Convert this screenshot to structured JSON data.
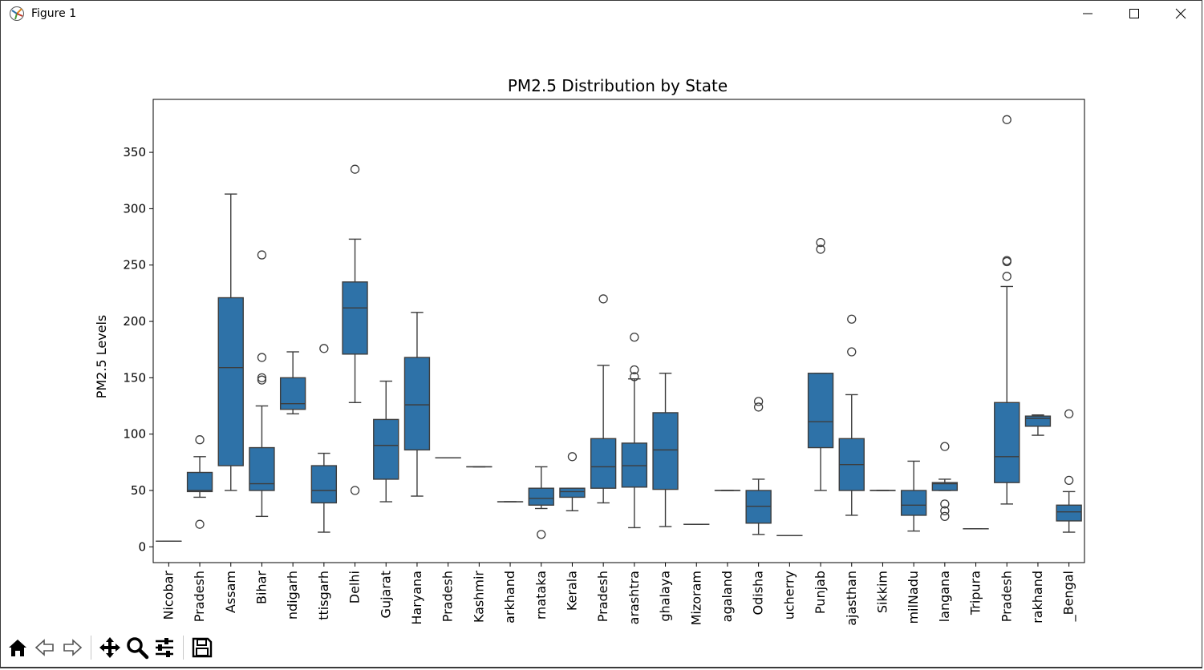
{
  "window": {
    "title": "Figure 1"
  },
  "toolbar": {
    "buttons": [
      {
        "name": "home-icon"
      },
      {
        "name": "back-icon"
      },
      {
        "name": "forward-icon"
      },
      {
        "name": "pan-icon"
      },
      {
        "name": "zoom-icon"
      },
      {
        "name": "configure-subplots-icon"
      },
      {
        "name": "save-icon"
      }
    ]
  },
  "chart_data": {
    "type": "box",
    "title": "PM2.5 Distribution by State",
    "xlabel": "",
    "ylabel": "PM2.5 Levels",
    "ylim": [
      -14,
      397
    ],
    "yticks": [
      0,
      50,
      100,
      150,
      200,
      250,
      300,
      350
    ],
    "color": "#2e72a8",
    "categories": [
      "Nicobar",
      "Pradesh",
      "Assam",
      "Bihar",
      "ndigarh",
      "ttisgarh",
      "Delhi",
      "Gujarat",
      "Haryana",
      "Pradesh",
      "Kashmir",
      "arkhand",
      "rnataka",
      "Kerala",
      "Pradesh",
      "arashtra",
      "ghalaya",
      "Mizoram",
      "agaland",
      "Odisha",
      "ucherry",
      "Punjab",
      "ajasthan",
      "Sikkim",
      "milNadu",
      "langana",
      "Tripura",
      "Pradesh",
      "rakhand",
      "_Bengal"
    ],
    "boxes": [
      {
        "min": 5,
        "q1": 5,
        "median": 5,
        "q3": 5,
        "max": 5,
        "outliers": []
      },
      {
        "min": 44,
        "q1": 49,
        "median": 50,
        "q3": 66,
        "max": 80,
        "outliers": [
          95,
          20
        ]
      },
      {
        "min": 50,
        "q1": 72,
        "median": 159,
        "q3": 221,
        "max": 313,
        "outliers": []
      },
      {
        "min": 27,
        "q1": 50,
        "median": 56,
        "q3": 88,
        "max": 125,
        "outliers": [
          259,
          168,
          150,
          148
        ]
      },
      {
        "min": 118,
        "q1": 122,
        "median": 127,
        "q3": 150,
        "max": 173,
        "outliers": []
      },
      {
        "min": 13,
        "q1": 39,
        "median": 50,
        "q3": 72,
        "max": 83,
        "outliers": [
          176
        ]
      },
      {
        "min": 128,
        "q1": 171,
        "median": 212,
        "q3": 235,
        "max": 273,
        "outliers": [
          335,
          50
        ]
      },
      {
        "min": 40,
        "q1": 60,
        "median": 90,
        "q3": 113,
        "max": 147,
        "outliers": []
      },
      {
        "min": 45,
        "q1": 86,
        "median": 126,
        "q3": 168,
        "max": 208,
        "outliers": []
      },
      {
        "min": 79,
        "q1": 79,
        "median": 79,
        "q3": 79,
        "max": 79,
        "outliers": []
      },
      {
        "min": 71,
        "q1": 71,
        "median": 71,
        "q3": 71,
        "max": 71,
        "outliers": []
      },
      {
        "min": 40,
        "q1": 40,
        "median": 40,
        "q3": 40,
        "max": 40,
        "outliers": []
      },
      {
        "min": 34,
        "q1": 37,
        "median": 43,
        "q3": 52,
        "max": 71,
        "outliers": [
          11
        ]
      },
      {
        "min": 32,
        "q1": 44,
        "median": 49,
        "q3": 52,
        "max": 52,
        "outliers": [
          80
        ]
      },
      {
        "min": 39,
        "q1": 52,
        "median": 71,
        "q3": 96,
        "max": 161,
        "outliers": [
          220
        ]
      },
      {
        "min": 17,
        "q1": 53,
        "median": 72,
        "q3": 92,
        "max": 149,
        "outliers": [
          186,
          157,
          151
        ]
      },
      {
        "min": 18,
        "q1": 51,
        "median": 86,
        "q3": 119,
        "max": 154,
        "outliers": []
      },
      {
        "min": 20,
        "q1": 20,
        "median": 20,
        "q3": 20,
        "max": 20,
        "outliers": []
      },
      {
        "min": 50,
        "q1": 50,
        "median": 50,
        "q3": 50,
        "max": 50,
        "outliers": []
      },
      {
        "min": 11,
        "q1": 21,
        "median": 36,
        "q3": 50,
        "max": 60,
        "outliers": [
          129,
          124
        ]
      },
      {
        "min": 10,
        "q1": 10,
        "median": 10,
        "q3": 10,
        "max": 10,
        "outliers": []
      },
      {
        "min": 50,
        "q1": 88,
        "median": 111,
        "q3": 154,
        "max": 154,
        "outliers": [
          270,
          264
        ]
      },
      {
        "min": 28,
        "q1": 50,
        "median": 73,
        "q3": 96,
        "max": 135,
        "outliers": [
          202,
          173
        ]
      },
      {
        "min": 50,
        "q1": 50,
        "median": 50,
        "q3": 50,
        "max": 50,
        "outliers": []
      },
      {
        "min": 14,
        "q1": 28,
        "median": 37,
        "q3": 50,
        "max": 76,
        "outliers": []
      },
      {
        "min": 50,
        "q1": 50,
        "median": 56,
        "q3": 57,
        "max": 60,
        "outliers": [
          89,
          38,
          32,
          27
        ]
      },
      {
        "min": 16,
        "q1": 16,
        "median": 16,
        "q3": 16,
        "max": 16,
        "outliers": []
      },
      {
        "min": 38,
        "q1": 57,
        "median": 80,
        "q3": 128,
        "max": 231,
        "outliers": [
          379,
          254,
          253,
          240
        ]
      },
      {
        "min": 99,
        "q1": 107,
        "median": 114,
        "q3": 116,
        "max": 117,
        "outliers": []
      },
      {
        "min": 13,
        "q1": 23,
        "median": 31,
        "q3": 37,
        "max": 49,
        "outliers": [
          118,
          59
        ]
      }
    ]
  }
}
